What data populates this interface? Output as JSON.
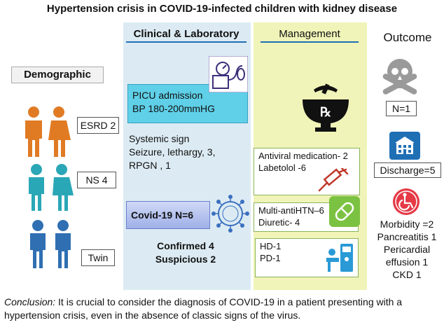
{
  "title": "Hypertension crisis in COVID-19-infected children with kidney disease",
  "headers": {
    "clinical": "Clinical & Laboratory",
    "management": "Management",
    "outcome": "Outcome"
  },
  "demographic": {
    "label": "Demographic",
    "groups": [
      {
        "label": "ESRD 2",
        "color": "#e07b24"
      },
      {
        "label": "NS 4",
        "color": "#2aa7b6"
      },
      {
        "label": "Twin",
        "color": "#2f6fb2"
      }
    ]
  },
  "clinical": {
    "picu_line1": "PICU admission",
    "picu_line2": "BP 180-200mmHG",
    "systemic_line1": "Systemic sign",
    "systemic_line2": "Seizure, lethargy, 3,",
    "systemic_line3": "RPGN , 1",
    "covid": "Covid-19 N=6",
    "confirmed": "Confirmed 4",
    "suspicious": "Suspicious 2"
  },
  "management": {
    "antiviral": "Antiviral medication- 2",
    "labetolol": "Labetolol -6",
    "multi": "Multi-antiHTN–6",
    "diuretic": "Diuretic- 4",
    "hd": "HD-1",
    "pd": "PD-1"
  },
  "outcome": {
    "death": "N=1",
    "discharge": "Discharge=5",
    "morbidity": "Morbidity =2",
    "pancreatitis": "Pancreatitis 1",
    "pericardial1": "Pericardial",
    "pericardial2": "effusion 1",
    "ckd": "CKD 1"
  },
  "conclusion": {
    "label": "Conclusion:",
    "text_line1": " It is crucial to consider the diagnosis of COVID-19 in a patient presenting with a",
    "text_line2": "hypertension crisis, even in the absence of classic signs of the virus."
  },
  "colors": {
    "clinical_bg": "#dcebf3",
    "management_bg": "#f0f4b8",
    "picu_box": "#5fd0e8",
    "accent": "#1f6fb5"
  }
}
